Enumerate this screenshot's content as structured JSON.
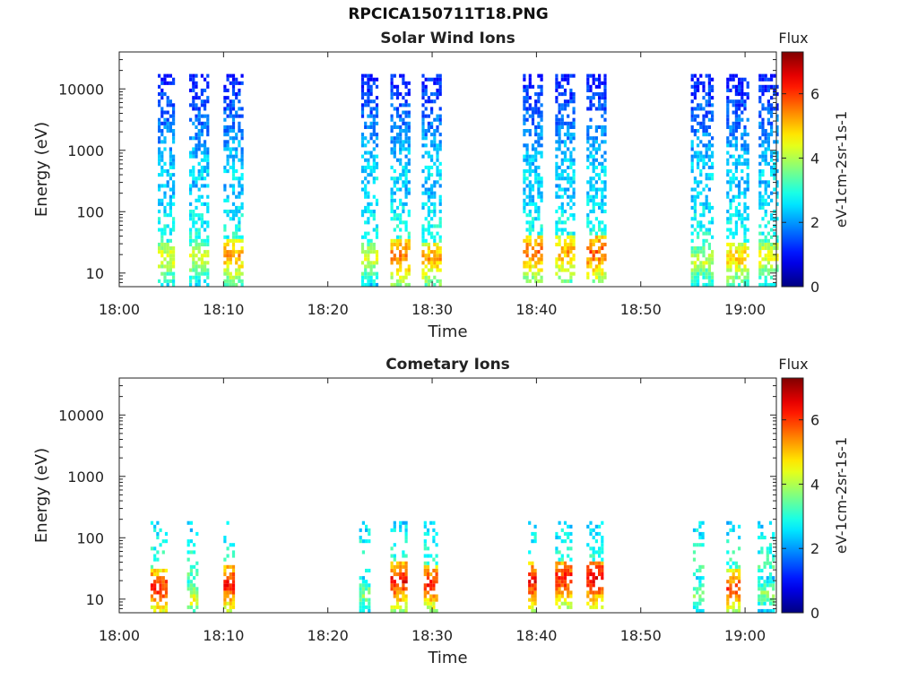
{
  "figure": {
    "title": "RPCICA150711T18.PNG"
  },
  "chart_data": [
    {
      "type": "heatmap",
      "title": "Solar Wind Ions",
      "xlabel": "Time",
      "ylabel": "Energy (eV)",
      "x_ticks": [
        "18:00",
        "18:10",
        "18:20",
        "18:30",
        "18:40",
        "18:50",
        "19:00"
      ],
      "x_tick_minutes": [
        0,
        10,
        20,
        30,
        40,
        50,
        60
      ],
      "xlim_minutes": [
        0,
        63
      ],
      "y_scale": "log",
      "y_ticks": [
        "10",
        "100",
        "1000",
        "10000"
      ],
      "y_tick_values": [
        10,
        100,
        1000,
        10000
      ],
      "ylim": [
        6,
        40000
      ],
      "colorbar": {
        "label": "Flux",
        "unit": "eV-1cm-2sr-1s-1",
        "ticks": [
          "0",
          "2",
          "4",
          "6"
        ],
        "range": [
          0,
          7.3
        ]
      },
      "bursts": [
        {
          "start_minute": 3.7,
          "end_minute": 5.2,
          "peak_energy_eV": 18,
          "peak_flux": 4.5
        },
        {
          "start_minute": 6.7,
          "end_minute": 8.5,
          "peak_energy_eV": 18,
          "peak_flux": 4.3
        },
        {
          "start_minute": 10.0,
          "end_minute": 11.8,
          "peak_energy_eV": 20,
          "peak_flux": 5.3
        },
        {
          "start_minute": 23.2,
          "end_minute": 24.8,
          "peak_energy_eV": 18,
          "peak_flux": 4.3
        },
        {
          "start_minute": 26.0,
          "end_minute": 27.8,
          "peak_energy_eV": 20,
          "peak_flux": 5.6
        },
        {
          "start_minute": 29.0,
          "end_minute": 30.8,
          "peak_energy_eV": 18,
          "peak_flux": 5.3
        },
        {
          "start_minute": 38.7,
          "end_minute": 40.5,
          "peak_energy_eV": 22,
          "peak_flux": 5.6
        },
        {
          "start_minute": 41.8,
          "end_minute": 43.6,
          "peak_energy_eV": 22,
          "peak_flux": 5.3
        },
        {
          "start_minute": 44.8,
          "end_minute": 46.6,
          "peak_energy_eV": 22,
          "peak_flux": 5.8
        },
        {
          "start_minute": 54.8,
          "end_minute": 56.8,
          "peak_energy_eV": 16,
          "peak_flux": 4.2
        },
        {
          "start_minute": 58.2,
          "end_minute": 60.2,
          "peak_energy_eV": 18,
          "peak_flux": 5.0
        },
        {
          "start_minute": 61.3,
          "end_minute": 63.0,
          "peak_energy_eV": 18,
          "peak_flux": 4.6
        }
      ]
    },
    {
      "type": "heatmap",
      "title": "Cometary Ions",
      "xlabel": "Time",
      "ylabel": "Energy (eV)",
      "x_ticks": [
        "18:00",
        "18:10",
        "18:20",
        "18:30",
        "18:40",
        "18:50",
        "19:00"
      ],
      "x_tick_minutes": [
        0,
        10,
        20,
        30,
        40,
        50,
        60
      ],
      "xlim_minutes": [
        0,
        63
      ],
      "y_scale": "log",
      "y_ticks": [
        "10",
        "100",
        "1000",
        "10000"
      ],
      "y_tick_values": [
        10,
        100,
        1000,
        10000
      ],
      "ylim": [
        6,
        40000
      ],
      "colorbar": {
        "label": "Flux",
        "unit": "eV-1cm-2sr-1s-1",
        "ticks": [
          "0",
          "2",
          "4",
          "6"
        ],
        "range": [
          0,
          7.3
        ]
      },
      "bursts": [
        {
          "start_minute": 3.0,
          "end_minute": 4.5,
          "peak_energy_eV": 15,
          "peak_flux": 6.2
        },
        {
          "start_minute": 6.5,
          "end_minute": 7.5,
          "peak_energy_eV": 10,
          "peak_flux": 4.5
        },
        {
          "start_minute": 10.0,
          "end_minute": 11.0,
          "peak_energy_eV": 18,
          "peak_flux": 6.3
        },
        {
          "start_minute": 23.0,
          "end_minute": 24.0,
          "peak_energy_eV": 12,
          "peak_flux": 3.8
        },
        {
          "start_minute": 26.0,
          "end_minute": 27.4,
          "peak_energy_eV": 20,
          "peak_flux": 6.4
        },
        {
          "start_minute": 29.2,
          "end_minute": 30.5,
          "peak_energy_eV": 18,
          "peak_flux": 6.2
        },
        {
          "start_minute": 39.2,
          "end_minute": 40.0,
          "peak_energy_eV": 20,
          "peak_flux": 6.5
        },
        {
          "start_minute": 41.8,
          "end_minute": 43.4,
          "peak_energy_eV": 22,
          "peak_flux": 6.3
        },
        {
          "start_minute": 44.8,
          "end_minute": 46.3,
          "peak_energy_eV": 22,
          "peak_flux": 6.6
        },
        {
          "start_minute": 55.0,
          "end_minute": 56.0,
          "peak_energy_eV": 12,
          "peak_flux": 3.8
        },
        {
          "start_minute": 58.2,
          "end_minute": 59.4,
          "peak_energy_eV": 15,
          "peak_flux": 6.0
        },
        {
          "start_minute": 61.2,
          "end_minute": 62.6,
          "peak_energy_eV": 12,
          "peak_flux": 3.8
        }
      ]
    }
  ]
}
